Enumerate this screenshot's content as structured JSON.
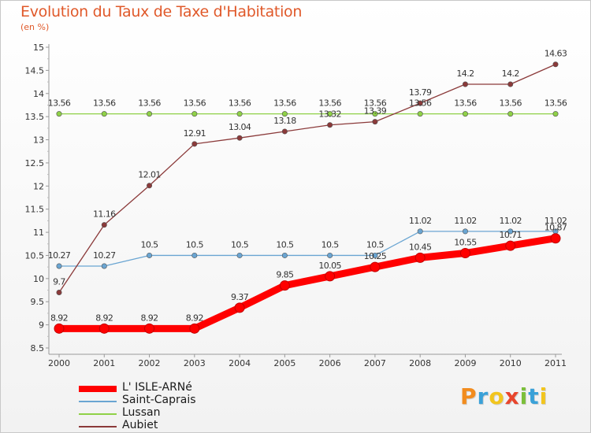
{
  "header": {
    "title": "Evolution du Taux de Taxe d'Habitation",
    "unit": "(en %)"
  },
  "logo": {
    "letters": [
      "P",
      "r",
      "o",
      "x",
      "i",
      "t",
      "i"
    ],
    "colors": [
      "#f28c1e",
      "#3aa1d8",
      "#f2c51e",
      "#e8452c",
      "#7bbf3a",
      "#3aa1d8",
      "#f2c51e"
    ]
  },
  "chart_data": {
    "type": "line",
    "title": "Evolution du Taux de Taxe d'Habitation",
    "ylabel": "(en %)",
    "x": [
      "2000",
      "2001",
      "2002",
      "2003",
      "2004",
      "2005",
      "2006",
      "2007",
      "2008",
      "2009",
      "2010",
      "2011"
    ],
    "ylim": [
      8.5,
      15
    ],
    "yticks": [
      "8.5",
      "9",
      "9.5",
      "10",
      "10.5",
      "11",
      "11.5",
      "12",
      "12.5",
      "13",
      "13.5",
      "14",
      "14.5",
      "15"
    ],
    "grid": false,
    "legend_position": "bottom-left",
    "series": [
      {
        "name": "L' ISLE-ARNé",
        "color": "#ff0000",
        "values": [
          8.92,
          8.92,
          8.92,
          8.92,
          9.37,
          9.85,
          10.05,
          10.25,
          10.45,
          10.55,
          10.71,
          10.87
        ],
        "labels": [
          "8.92",
          "8.92",
          "8.92",
          "8.92",
          "9.37",
          "9.85",
          "10.05",
          "10.25",
          "10.45",
          "10.55",
          "10.71",
          "10.87"
        ]
      },
      {
        "name": "Saint-Caprais",
        "color": "#6aa5d2",
        "values": [
          10.27,
          10.27,
          10.5,
          10.5,
          10.5,
          10.5,
          10.5,
          10.5,
          11.02,
          11.02,
          11.02,
          11.02
        ],
        "labels": [
          "10.27",
          "10.27",
          "10.5",
          "10.5",
          "10.5",
          "10.5",
          "10.5",
          "10.5",
          "11.02",
          "11.02",
          "11.02",
          "11.02"
        ]
      },
      {
        "name": "Lussan",
        "color": "#8fd147",
        "values": [
          13.56,
          13.56,
          13.56,
          13.56,
          13.56,
          13.56,
          13.56,
          13.56,
          13.56,
          13.56,
          13.56,
          13.56
        ],
        "labels": [
          "13.56",
          "13.56",
          "13.56",
          "13.56",
          "13.56",
          "13.56",
          "13.56",
          "13.56",
          "13.56",
          "13.56",
          "13.56",
          "13.56"
        ]
      },
      {
        "name": "Aubiet",
        "color": "#8b3a3a",
        "values": [
          9.7,
          11.16,
          12.01,
          12.91,
          13.04,
          13.18,
          13.32,
          13.39,
          13.79,
          14.2,
          14.2,
          14.63
        ],
        "labels": [
          "9.7",
          "11.16",
          "12.01",
          "12.91",
          "13.04",
          "13.18",
          "13.32",
          "13.39",
          "13.79",
          "14.2",
          "14.2",
          "14.63"
        ]
      }
    ]
  }
}
